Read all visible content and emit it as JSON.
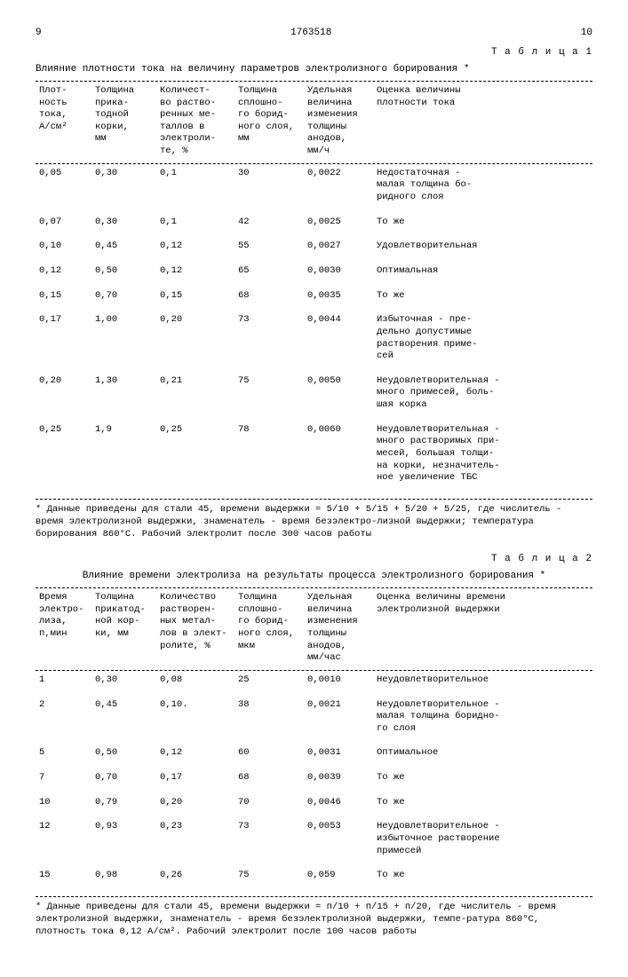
{
  "page": {
    "left_num": "9",
    "center_num": "1763518",
    "right_num": "10"
  },
  "table1": {
    "label": "Т а б л и ц а 1",
    "caption": "Влияние плотности тока на величину параметров электролизного борирования *",
    "headers": [
      "Плот-\nность\nтока,\nА/см²",
      "Толщина\nприка-\nтодной\nкорки,\nмм",
      "Количест-\nво раство-\nренных ме-\nталлов в\nэлектроли-\nте,  %",
      "Толщина\nсплошно-\nго борид-\nного слоя,\nмм",
      "Удельная\nвеличина\nизменения\nтолщины\nанодов,\nмм/ч",
      "Оценка величины\nплотности тока"
    ],
    "rows": [
      [
        "0,05",
        "0,30",
        "0,1",
        "30",
        "0,0022",
        "Недостаточная -\nмалая толщина бо-\nридного слоя"
      ],
      [
        "0,07",
        "0,30",
        "0,1",
        "42",
        "0,0025",
        "То же"
      ],
      [
        "0,10",
        "0,45",
        "0,12",
        "55",
        "0,0027",
        "Удовлетворительная"
      ],
      [
        "0,12",
        "0,50",
        "0,12",
        "65",
        "0,0030",
        "Оптимальная"
      ],
      [
        "0,15",
        "0,70",
        "0,15",
        "68",
        "0,0035",
        "То же"
      ],
      [
        "0,17",
        "1,00",
        "0,20",
        "73",
        "0,0044",
        "Избыточная - пре-\nдельно допустимые\nрастворения приме-\nсей"
      ],
      [
        "0,20",
        "1,30",
        "0,21",
        "75",
        "0,0050",
        "Неудовлетворительная -\nмного примесей, боль-\nшая корка"
      ],
      [
        "0,25",
        "1,9",
        "0,25",
        "78",
        "0,0060",
        "Неудовлетворительная -\nмного растворимых при-\nмесей, большая толщи-\nна корки, незначитель-\nное увеличение ТБС"
      ]
    ],
    "footnote": "* Данные приведены для стали 45, времени выдержки = 5/10 + 5/15 + 5/20 + 5/25, где числитель - время электролизной выдержки, знаменатель - время безэлектро-лизной выдержки; температура борирования 860°С. Рабочий электролит после 300 часов работы"
  },
  "table2": {
    "label": "Т а б л и ц а 2",
    "caption": "Влияние времени электролиза на результаты процесса электролизного борирования *",
    "headers": [
      "Время\nэлектро-\nлиза,\nп,мин",
      "Толщина\nприкатод-\nной кор-\nки, мм",
      "Количество\nрастворен-\nных метал-\nлов в элект-\nролите, %",
      "Толщина\nсплошно-\nго борид-\nного слоя,\nмкм",
      "Удельная\nвеличина\nизменения\nтолщины\nанодов,\nмм/час",
      "Оценка величины времени\nэлектролизной выдержки"
    ],
    "rows": [
      [
        "1",
        "0,30",
        "0,08",
        "25",
        "0,0010",
        "Неудовлетворительное"
      ],
      [
        "2",
        "0,45",
        "0,10.",
        "38",
        "0,0021",
        "Неудовлетворительное -\nмалая толщина боридно-\nго слоя"
      ],
      [
        "5",
        "0,50",
        "0,12",
        "60",
        "0,0031",
        "Оптимальное"
      ],
      [
        "7",
        "0,70",
        "0,17",
        "68",
        "0,0039",
        "То же"
      ],
      [
        "10",
        "0,79",
        "0,20",
        "70",
        "0,0046",
        "То же"
      ],
      [
        "12",
        "0,93",
        "0,23",
        "73",
        "0,0053",
        "Неудовлетворительное -\nизбыточное растворение\nпримесей"
      ],
      [
        "15",
        "0,98",
        "0,26",
        "75",
        "0,059",
        "То же"
      ]
    ],
    "footnote": "* Данные приведены для стали 45, времени выдержки = п/10 + п/15 + п/20, где числитель - время электролизной выдержки, знаменатель - время безэлектролизной выдержки, темпе-ратура 860°С, плотность тока 0,12 А/см². Рабочий электролит после 100 часов работы"
  }
}
